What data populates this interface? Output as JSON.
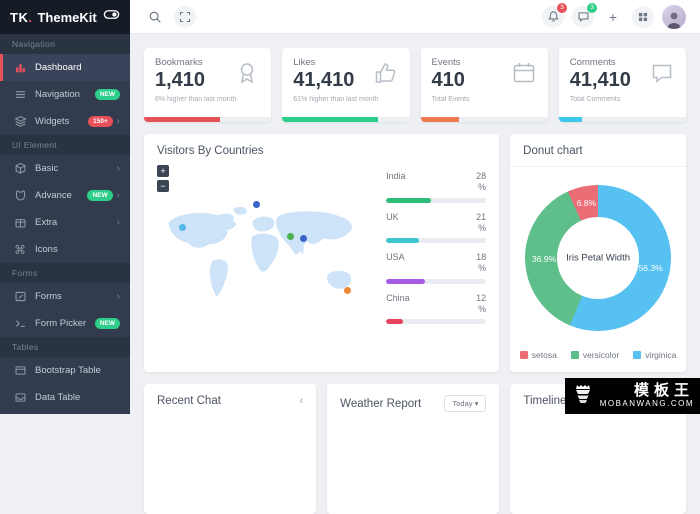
{
  "brand": {
    "logo_tk": "TK",
    "logo_dot": ".",
    "name": "ThemeKit"
  },
  "sidebar": {
    "sections": [
      {
        "label": "Navigation",
        "items": [
          {
            "label": "Dashboard"
          },
          {
            "label": "Navigation",
            "badge": "NEW",
            "badge_color": "#2dce89"
          },
          {
            "label": "Widgets",
            "badge": "150+",
            "badge_color": "#e7515a",
            "chevron": "›"
          }
        ]
      },
      {
        "label": "UI Element",
        "items": [
          {
            "label": "Basic",
            "chevron": "›"
          },
          {
            "label": "Advance",
            "badge": "NEW",
            "badge_color": "#2dce89",
            "chevron": "›"
          },
          {
            "label": "Extra",
            "chevron": "›"
          },
          {
            "label": "Icons"
          }
        ]
      },
      {
        "label": "Forms",
        "items": [
          {
            "label": "Forms",
            "chevron": "›"
          },
          {
            "label": "Form Picker",
            "badge": "NEW",
            "badge_color": "#2dce89"
          }
        ]
      },
      {
        "label": "Tables",
        "items": [
          {
            "label": "Bootstrap Table"
          },
          {
            "label": "Data Table"
          }
        ]
      }
    ]
  },
  "topbar": {
    "bell_badge": "3",
    "bell_badge_color": "#e7515a",
    "chat_badge": "3",
    "chat_badge_color": "#2dce89",
    "plus": "+"
  },
  "stats": [
    {
      "title": "Bookmarks",
      "value": "1,410",
      "subtitle": "6% higher than last month",
      "icon": "ribbon-icon",
      "bar_color": "#e7515a",
      "bar_percent": 60
    },
    {
      "title": "Likes",
      "value": "41,410",
      "subtitle": "61% higher than last month",
      "icon": "thumbs-up-icon",
      "bar_color": "#2dce89",
      "bar_percent": 75
    },
    {
      "title": "Events",
      "value": "410",
      "subtitle": "Total Events",
      "icon": "calendar-icon",
      "bar_color": "#ef7950",
      "bar_percent": 30
    },
    {
      "title": "Comments",
      "value": "41,410",
      "subtitle": "Total Comments",
      "icon": "chat-bubble-icon",
      "bar_color": "#3dc7ea",
      "bar_percent": 18
    }
  ],
  "visitors": {
    "title": "Visitors By Countries",
    "zoom_in": "+",
    "zoom_out": "−",
    "countries": [
      {
        "name": "India",
        "value": "28",
        "unit": "%",
        "color": "#2dbd78",
        "fill": 45
      },
      {
        "name": "UK",
        "value": "21",
        "unit": "%",
        "color": "#3ec6d0",
        "fill": 33
      },
      {
        "name": "USA",
        "value": "18",
        "unit": "%",
        "color": "#a55ce5",
        "fill": 39
      },
      {
        "name": "China",
        "value": "12",
        "unit": "%",
        "color": "#e8415c",
        "fill": 17
      }
    ],
    "dots": [
      {
        "country": "USA",
        "color": "#54b9e8"
      },
      {
        "country": "UK",
        "color": "#3a63c8"
      },
      {
        "country": "Saudi Arabia",
        "color": "#4caf50"
      },
      {
        "country": "India",
        "color": "#3a63c8"
      },
      {
        "country": "Australia",
        "color": "#ed8936"
      }
    ]
  },
  "donut": {
    "title": "Donut chart",
    "center_label": "Iris Petal Width",
    "segments": [
      {
        "name": "virginica",
        "value": 56.3,
        "label": "56.3%",
        "color": "#57c1f1"
      },
      {
        "name": "versicolor",
        "value": 36.9,
        "label": "36.9%",
        "color": "#5fbf8b"
      },
      {
        "name": "setosa",
        "value": 6.8,
        "label": "6.8%",
        "color": "#eb6e76"
      }
    ],
    "legend": [
      {
        "name": "setosa",
        "color": "#eb6e76"
      },
      {
        "name": "versicolor",
        "color": "#5fbf8b"
      },
      {
        "name": "virginica",
        "color": "#57c1f1"
      }
    ]
  },
  "chart_data": [
    {
      "type": "pie",
      "title": "Donut chart",
      "center_label": "Iris Petal Width",
      "labels": [
        "setosa",
        "versicolor",
        "virginica"
      ],
      "values": [
        6.8,
        36.9,
        56.3
      ],
      "colors": [
        "#eb6e76",
        "#5fbf8b",
        "#57c1f1"
      ],
      "legend_position": "bottom"
    },
    {
      "type": "bar",
      "title": "Visitors By Countries",
      "categories": [
        "India",
        "UK",
        "USA",
        "China"
      ],
      "values": [
        28,
        21,
        18,
        12
      ],
      "unit": "%"
    }
  ],
  "bottom": {
    "recent_chat_title": "Recent Chat",
    "recent_chat_arrow": "‹",
    "weather_title": "Weather Report",
    "weather_filter": "Today ▾",
    "timeline_title": "Timeline"
  },
  "watermark": {
    "cn": "模板王",
    "en": "MOBANWANG.COM"
  }
}
